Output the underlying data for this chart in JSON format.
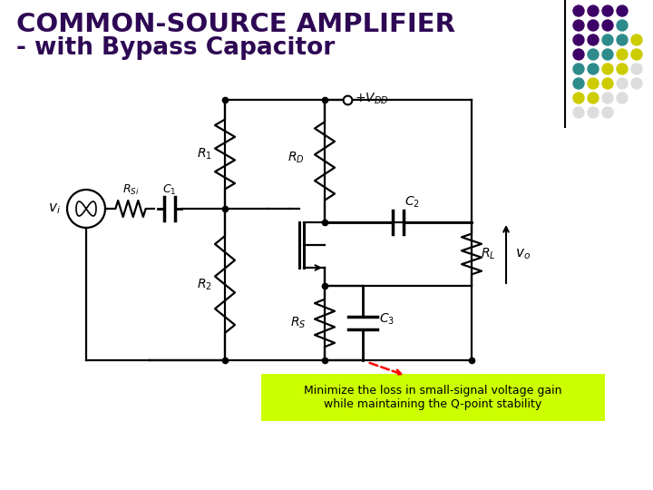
{
  "title_line1": "COMMON-SOURCE AMPLIFIER",
  "title_line2": "- with Bypass Capacitor",
  "title_color": "#2E0854",
  "bg_color": "#FFFFFF",
  "annotation_text": "Minimize the loss in small-signal voltage gain\nwhile maintaining the Q-point stability",
  "annotation_bg": "#CCFF00",
  "dot_colors": [
    [
      "#3D0066",
      "#3D0066",
      "#3D0066",
      "#3D0066"
    ],
    [
      "#3D0066",
      "#3D0066",
      "#3D0066",
      "#2E8B8B"
    ],
    [
      "#3D0066",
      "#3D0066",
      "#2E8B8B",
      "#2E8B8B",
      "#CCCC00"
    ],
    [
      "#3D0066",
      "#2E8B8B",
      "#2E8B8B",
      "#CCCC00",
      "#CCCC00"
    ],
    [
      "#2E8B8B",
      "#2E8B8B",
      "#CCCC00",
      "#CCCC00",
      "#DDDDDD"
    ],
    [
      "#2E8B8B",
      "#CCCC00",
      "#CCCC00",
      "#DDDDDD",
      "#DDDDDD"
    ],
    [
      "#CCCC00",
      "#CCCC00",
      "#DDDDDD",
      "#DDDDDD"
    ],
    [
      "#DDDDDD",
      "#DDDDDD",
      "#DDDDDD"
    ]
  ]
}
